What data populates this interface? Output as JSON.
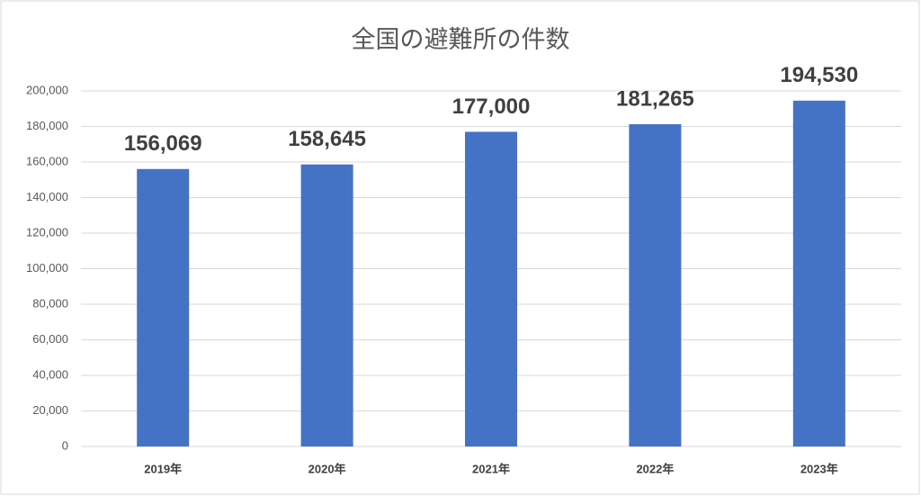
{
  "chart_data": {
    "type": "bar",
    "title": "全国の避難所の件数",
    "categories": [
      "2019年",
      "2020年",
      "2021年",
      "2022年",
      "2023年"
    ],
    "values": [
      156069,
      158645,
      177000,
      181265,
      194530
    ],
    "value_labels": [
      "156,069",
      "158,645",
      "177,000",
      "181,265",
      "194,530"
    ],
    "color": "#4472c4",
    "ylim": [
      0,
      200000
    ],
    "yticks": [
      0,
      {
        "value": 20000,
        "label": "20,000"
      },
      {
        "value": 40000,
        "label": "40,000"
      },
      {
        "value": 60000,
        "label": "60,000"
      },
      {
        "value": 80000,
        "label": "80,000"
      },
      {
        "value": 100000,
        "label": "100,000"
      },
      {
        "value": 120000,
        "label": "120,000"
      },
      {
        "value": 140000,
        "label": "140,000"
      },
      {
        "value": 160000,
        "label": "160,000"
      },
      {
        "value": 180000,
        "label": "180,000"
      },
      {
        "value": 200000,
        "label": "200,000"
      }
    ],
    "grid": true
  }
}
